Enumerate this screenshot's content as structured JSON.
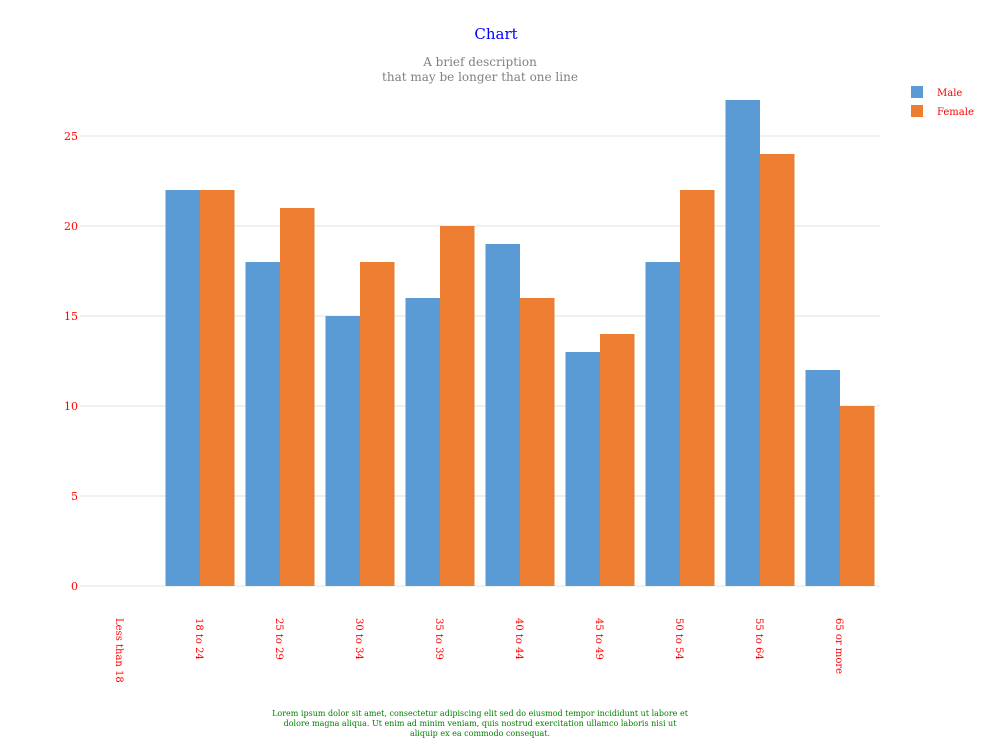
{
  "chart_data": {
    "type": "bar",
    "title": "Chart",
    "subtitle_lines": [
      "A brief description",
      "that may be longer that one line"
    ],
    "categories": [
      "Less than 18",
      "18 to 24",
      "25 to 29",
      "30 to 34",
      "35 to 39",
      "40 to 44",
      "45 to 49",
      "50 to 54",
      "55 to 64",
      "65 or more"
    ],
    "series": [
      {
        "name": "Male",
        "values": [
          0,
          22,
          18,
          15,
          16,
          19,
          13,
          18,
          27,
          12
        ],
        "color": "#5b9bd5"
      },
      {
        "name": "Female",
        "values": [
          0,
          22,
          21,
          18,
          20,
          16,
          14,
          22,
          24,
          10
        ],
        "color": "#ed7d31"
      }
    ],
    "yticks": [
      0,
      5,
      10,
      15,
      20,
      25
    ],
    "ylim": [
      0,
      27
    ],
    "xlabel": "",
    "ylabel": "",
    "grid": true,
    "legend_position": "top-right",
    "caption": "Lorem ipsum dolor sit amet, consectetur adipiscing elit sed do eiusmod tempor incididunt ut labore et dolore magna aliqua. Ut enim ad minim veniam, quis nostrud exercitation ullamco laboris nisi ut aliquip ex ea commodo consequat.",
    "colors": {
      "title": "#0000ff",
      "subtitle": "#808080",
      "axis_labels": "#ff0000",
      "legend_text": "#ff0000",
      "caption": "#008000",
      "grid": "#e0e0e0"
    }
  }
}
